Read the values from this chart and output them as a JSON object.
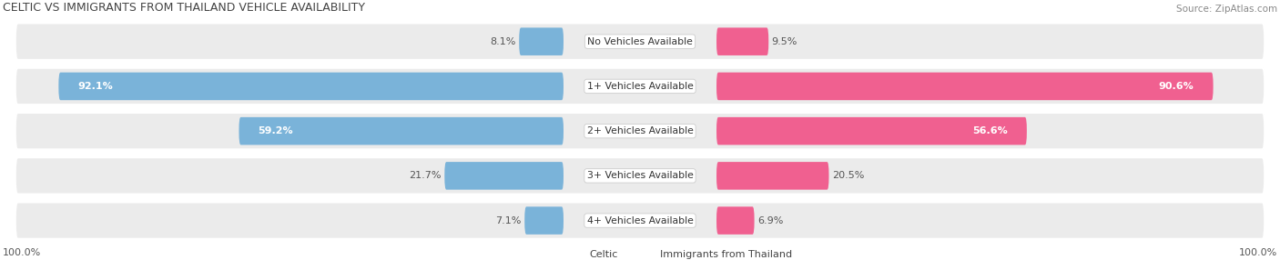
{
  "title": "CELTIC VS IMMIGRANTS FROM THAILAND VEHICLE AVAILABILITY",
  "source": "Source: ZipAtlas.com",
  "categories": [
    "No Vehicles Available",
    "1+ Vehicles Available",
    "2+ Vehicles Available",
    "3+ Vehicles Available",
    "4+ Vehicles Available"
  ],
  "celtic_values": [
    8.1,
    92.1,
    59.2,
    21.7,
    7.1
  ],
  "thailand_values": [
    9.5,
    90.6,
    56.6,
    20.5,
    6.9
  ],
  "celtic_color": "#7ab3d9",
  "celtic_color_dark": "#6aaad4",
  "thailand_color": "#f06090",
  "thailand_color_light": "#f090b0",
  "row_bg_color": "#ebebeb",
  "row_bg_alt_color": "#e0e0e8",
  "legend_celtic_color": "#7ab3d9",
  "legend_thailand_color": "#f06090",
  "axis_label_left": "100.0%",
  "axis_label_right": "100.0%",
  "figsize": [
    14.06,
    2.86
  ],
  "dpi": 100
}
